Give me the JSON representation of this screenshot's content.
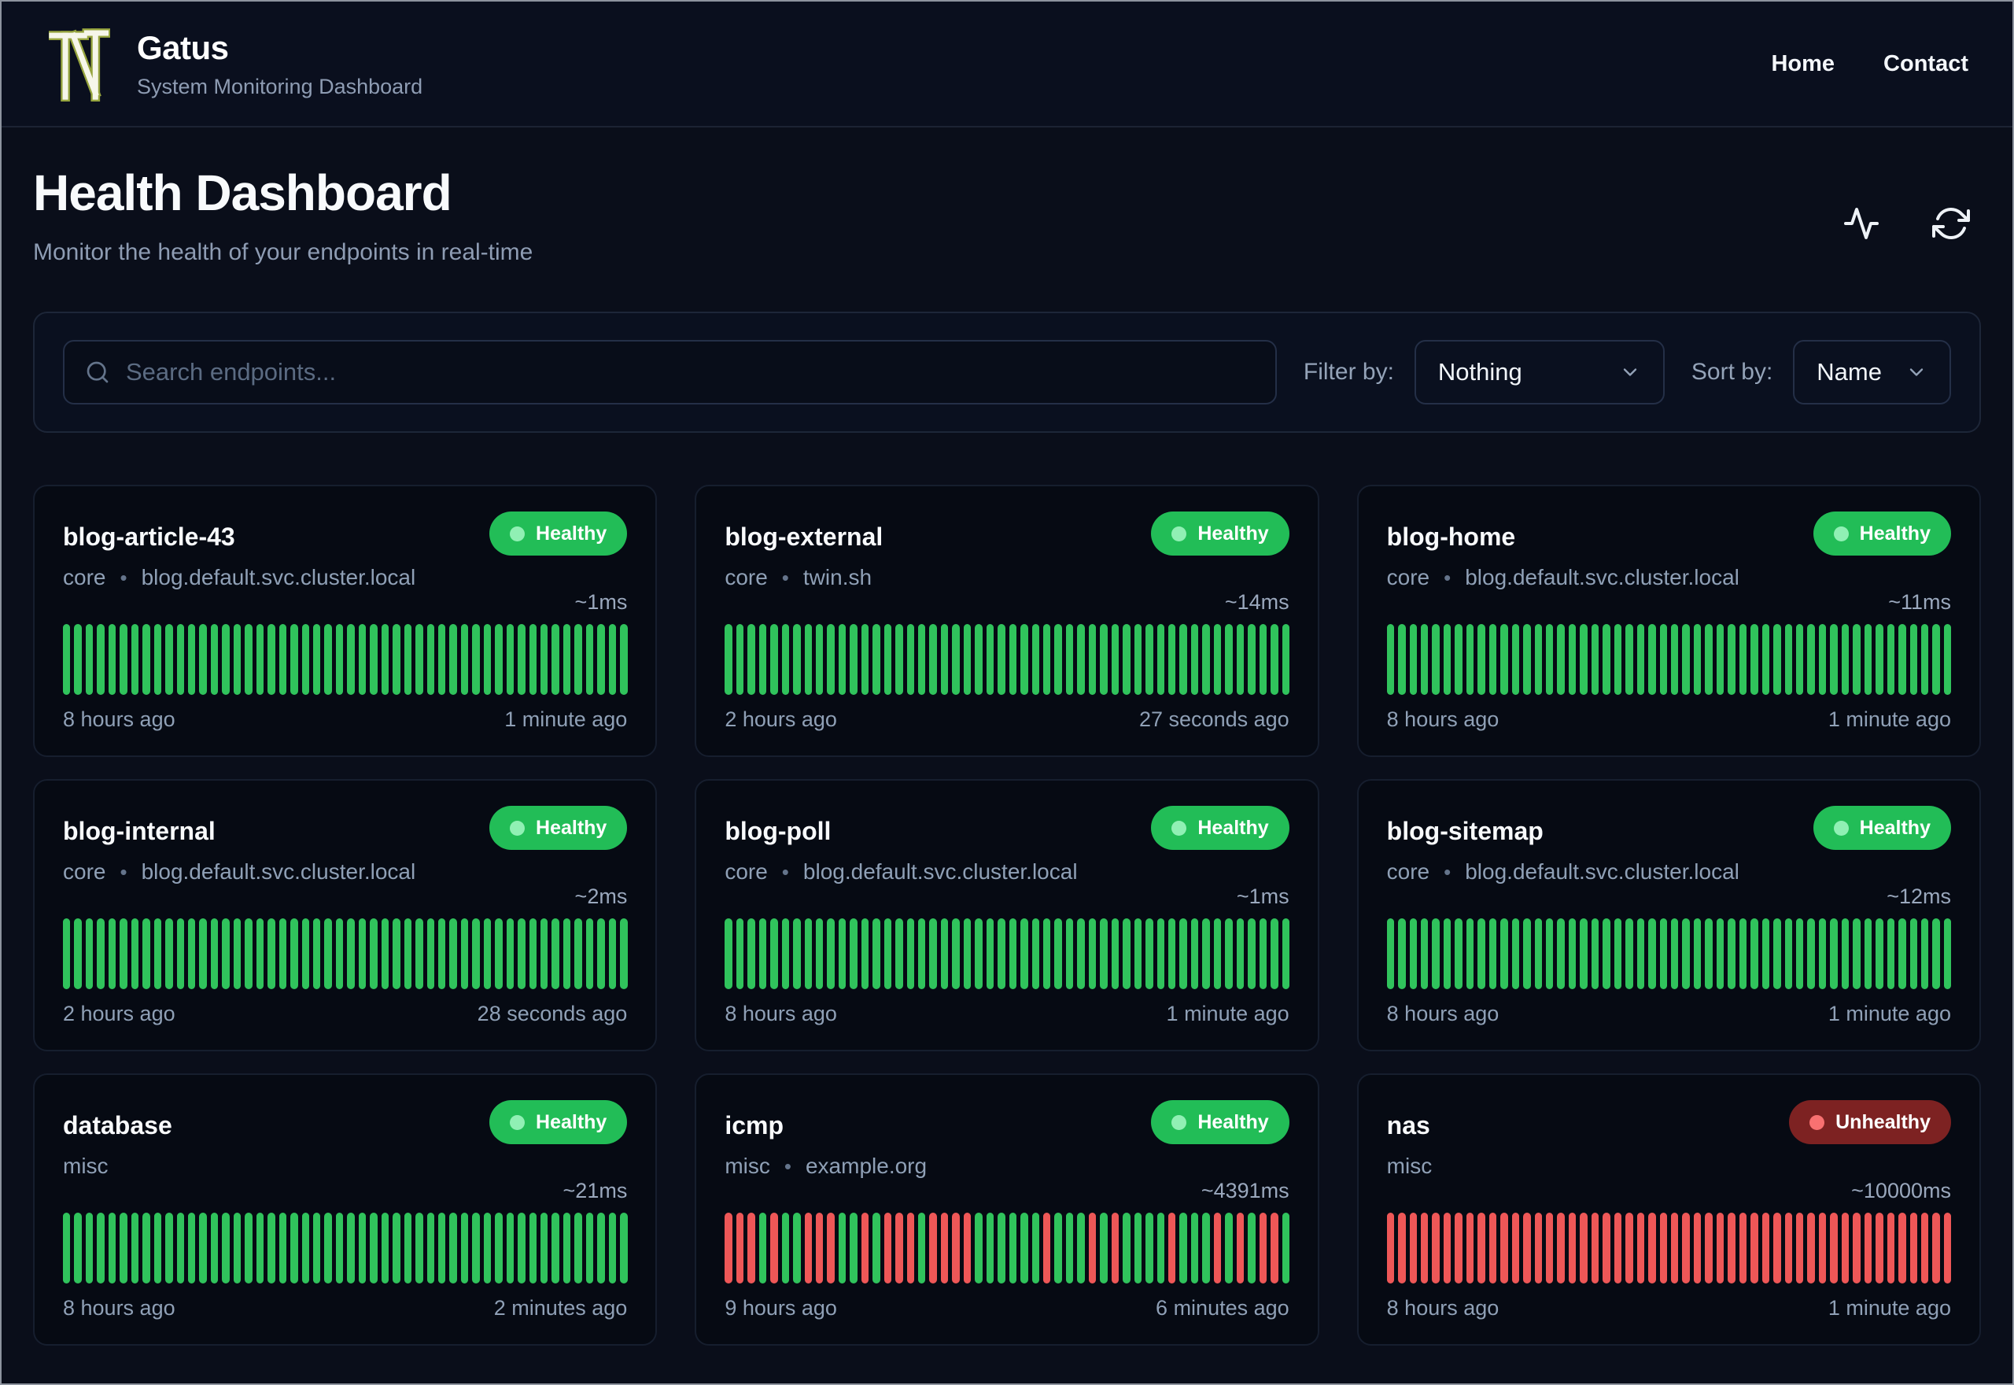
{
  "brand": {
    "title": "Gatus",
    "subtitle": "System Monitoring Dashboard",
    "logo_glyph": "TN"
  },
  "nav": [
    {
      "label": "Home"
    },
    {
      "label": "Contact"
    }
  ],
  "page": {
    "title": "Health Dashboard",
    "subtitle": "Monitor the health of your endpoints in real-time"
  },
  "toolbar": {
    "search_placeholder": "Search endpoints...",
    "filter_label": "Filter by:",
    "filter_value": "Nothing",
    "sort_label": "Sort by:",
    "sort_value": "Name"
  },
  "card_separator": "•",
  "colors": {
    "bar_up": "#30c35c",
    "bar_down": "#ee5757",
    "healthy_badge": "#22bd57",
    "unhealthy_badge": "#7d2222",
    "healthy_dot": "#90f0b4",
    "unhealthy_dot": "#f87171"
  },
  "endpoints": [
    {
      "name": "blog-article-43",
      "group": "core",
      "host": "blog.default.svc.cluster.local",
      "status": "Healthy",
      "response_time": "~1ms",
      "from": "8 hours ago",
      "to": "1 minute ago",
      "bars": [
        1,
        1,
        1,
        1,
        1,
        1,
        1,
        1,
        1,
        1,
        1,
        1,
        1,
        1,
        1,
        1,
        1,
        1,
        1,
        1,
        1,
        1,
        1,
        1,
        1,
        1,
        1,
        1,
        1,
        1,
        1,
        1,
        1,
        1,
        1,
        1,
        1,
        1,
        1,
        1,
        1,
        1,
        1,
        1,
        1,
        1,
        1,
        1,
        1,
        1
      ]
    },
    {
      "name": "blog-external",
      "group": "core",
      "host": "twin.sh",
      "status": "Healthy",
      "response_time": "~14ms",
      "from": "2 hours ago",
      "to": "27 seconds ago",
      "bars": [
        1,
        1,
        1,
        1,
        1,
        1,
        1,
        1,
        1,
        1,
        1,
        1,
        1,
        1,
        1,
        1,
        1,
        1,
        1,
        1,
        1,
        1,
        1,
        1,
        1,
        1,
        1,
        1,
        1,
        1,
        1,
        1,
        1,
        1,
        1,
        1,
        1,
        1,
        1,
        1,
        1,
        1,
        1,
        1,
        1,
        1,
        1,
        1,
        1,
        1
      ]
    },
    {
      "name": "blog-home",
      "group": "core",
      "host": "blog.default.svc.cluster.local",
      "status": "Healthy",
      "response_time": "~11ms",
      "from": "8 hours ago",
      "to": "1 minute ago",
      "bars": [
        1,
        1,
        1,
        1,
        1,
        1,
        1,
        1,
        1,
        1,
        1,
        1,
        1,
        1,
        1,
        1,
        1,
        1,
        1,
        1,
        1,
        1,
        1,
        1,
        1,
        1,
        1,
        1,
        1,
        1,
        1,
        1,
        1,
        1,
        1,
        1,
        1,
        1,
        1,
        1,
        1,
        1,
        1,
        1,
        1,
        1,
        1,
        1,
        1,
        1
      ]
    },
    {
      "name": "blog-internal",
      "group": "core",
      "host": "blog.default.svc.cluster.local",
      "status": "Healthy",
      "response_time": "~2ms",
      "from": "2 hours ago",
      "to": "28 seconds ago",
      "bars": [
        1,
        1,
        1,
        1,
        1,
        1,
        1,
        1,
        1,
        1,
        1,
        1,
        1,
        1,
        1,
        1,
        1,
        1,
        1,
        1,
        1,
        1,
        1,
        1,
        1,
        1,
        1,
        1,
        1,
        1,
        1,
        1,
        1,
        1,
        1,
        1,
        1,
        1,
        1,
        1,
        1,
        1,
        1,
        1,
        1,
        1,
        1,
        1,
        1,
        1
      ]
    },
    {
      "name": "blog-poll",
      "group": "core",
      "host": "blog.default.svc.cluster.local",
      "status": "Healthy",
      "response_time": "~1ms",
      "from": "8 hours ago",
      "to": "1 minute ago",
      "bars": [
        1,
        1,
        1,
        1,
        1,
        1,
        1,
        1,
        1,
        1,
        1,
        1,
        1,
        1,
        1,
        1,
        1,
        1,
        1,
        1,
        1,
        1,
        1,
        1,
        1,
        1,
        1,
        1,
        1,
        1,
        1,
        1,
        1,
        1,
        1,
        1,
        1,
        1,
        1,
        1,
        1,
        1,
        1,
        1,
        1,
        1,
        1,
        1,
        1,
        1
      ]
    },
    {
      "name": "blog-sitemap",
      "group": "core",
      "host": "blog.default.svc.cluster.local",
      "status": "Healthy",
      "response_time": "~12ms",
      "from": "8 hours ago",
      "to": "1 minute ago",
      "bars": [
        1,
        1,
        1,
        1,
        1,
        1,
        1,
        1,
        1,
        1,
        1,
        1,
        1,
        1,
        1,
        1,
        1,
        1,
        1,
        1,
        1,
        1,
        1,
        1,
        1,
        1,
        1,
        1,
        1,
        1,
        1,
        1,
        1,
        1,
        1,
        1,
        1,
        1,
        1,
        1,
        1,
        1,
        1,
        1,
        1,
        1,
        1,
        1,
        1,
        1
      ]
    },
    {
      "name": "database",
      "group": "misc",
      "host": null,
      "status": "Healthy",
      "response_time": "~21ms",
      "from": "8 hours ago",
      "to": "2 minutes ago",
      "bars": [
        1,
        1,
        1,
        1,
        1,
        1,
        1,
        1,
        1,
        1,
        1,
        1,
        1,
        1,
        1,
        1,
        1,
        1,
        1,
        1,
        1,
        1,
        1,
        1,
        1,
        1,
        1,
        1,
        1,
        1,
        1,
        1,
        1,
        1,
        1,
        1,
        1,
        1,
        1,
        1,
        1,
        1,
        1,
        1,
        1,
        1,
        1,
        1,
        1,
        1
      ]
    },
    {
      "name": "icmp",
      "group": "misc",
      "host": "example.org",
      "status": "Healthy",
      "response_time": "~4391ms",
      "from": "9 hours ago",
      "to": "6 minutes ago",
      "bars": [
        0,
        0,
        0,
        1,
        0,
        1,
        1,
        0,
        0,
        0,
        1,
        1,
        0,
        1,
        0,
        0,
        0,
        1,
        0,
        0,
        0,
        0,
        1,
        1,
        1,
        1,
        1,
        1,
        0,
        1,
        1,
        1,
        0,
        1,
        0,
        1,
        1,
        1,
        1,
        0,
        1,
        1,
        1,
        0,
        1,
        0,
        1,
        0,
        0,
        1
      ]
    },
    {
      "name": "nas",
      "group": "misc",
      "host": null,
      "status": "Unhealthy",
      "response_time": "~10000ms",
      "from": "8 hours ago",
      "to": "1 minute ago",
      "bars": [
        0,
        0,
        0,
        0,
        0,
        0,
        0,
        0,
        0,
        0,
        0,
        0,
        0,
        0,
        0,
        0,
        0,
        0,
        0,
        0,
        0,
        0,
        0,
        0,
        0,
        0,
        0,
        0,
        0,
        0,
        0,
        0,
        0,
        0,
        0,
        0,
        0,
        0,
        0,
        0,
        0,
        0,
        0,
        0,
        0,
        0,
        0,
        0,
        0,
        0
      ]
    }
  ]
}
